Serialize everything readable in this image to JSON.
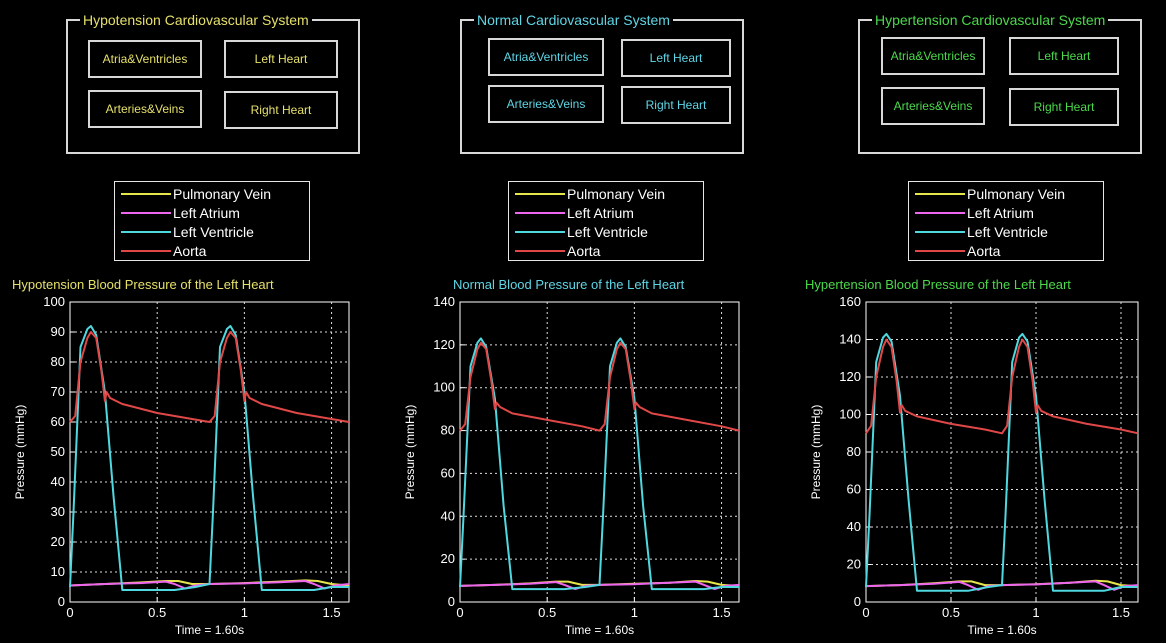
{
  "panels": [
    {
      "id": "hypotension",
      "accent": "#e6e06a",
      "group_title": "Hypotension Cardiovascular System",
      "buttons": {
        "atria_ventricles": "Atria&Ventricles",
        "left_heart": "Left Heart",
        "arteries_veins": "Arteries&Veins",
        "right_heart": "Right Heart"
      },
      "legend": [
        "Pulmonary Vein",
        "Left Atrium",
        "Left Ventricle",
        "Aorta"
      ]
    },
    {
      "id": "normal",
      "accent": "#5fd6e6",
      "group_title": "Normal Cardiovascular System",
      "buttons": {
        "atria_ventricles": "Atria&Ventricles",
        "left_heart": "Left Heart",
        "arteries_veins": "Arteries&Veins",
        "right_heart": "Right Heart"
      },
      "legend": [
        "Pulmonary Vein",
        "Left Atrium",
        "Left Ventricle",
        "Aorta"
      ]
    },
    {
      "id": "hypertension",
      "accent": "#4cd94c",
      "group_title": "Hypertension Cardiovascular System",
      "buttons": {
        "atria_ventricles": "Atria&Ventricles",
        "left_heart": "Left Heart",
        "arteries_veins": "Arteries&Veins",
        "right_heart": "Right Heart"
      },
      "legend": [
        "Pulmonary Vein",
        "Left Atrium",
        "Left Ventricle",
        "Aorta"
      ]
    }
  ],
  "series_colors": {
    "pulmonary_vein": "#e6e64c",
    "left_atrium": "#ee66ee",
    "left_ventricle": "#4fd8e0",
    "aorta": "#e04848"
  },
  "chart_data": [
    {
      "type": "line",
      "title": "Hypotension Blood Pressure of the Left Heart",
      "xlabel": "Time = 1.60s",
      "ylabel": "Pressure (mmHg)",
      "xlim": [
        0,
        1.6
      ],
      "ylim": [
        0,
        100
      ],
      "xticks": [
        0,
        0.5,
        1,
        1.5
      ],
      "yticks": [
        0,
        10,
        20,
        30,
        40,
        50,
        60,
        70,
        80,
        90,
        100
      ],
      "grid": true,
      "series": [
        {
          "name": "Pulmonary Vein",
          "color": "#e6e64c",
          "x": [
            0,
            0.2,
            0.4,
            0.55,
            0.62,
            0.7,
            0.8,
            1.0,
            1.2,
            1.35,
            1.42,
            1.5,
            1.6
          ],
          "y": [
            5.5,
            6,
            6.5,
            7,
            7,
            6,
            6,
            6.3,
            6.8,
            7.2,
            7,
            6,
            5.5
          ]
        },
        {
          "name": "Left Atrium",
          "color": "#ee66ee",
          "x": [
            0,
            0.2,
            0.4,
            0.55,
            0.6,
            0.66,
            0.72,
            0.8,
            1.0,
            1.2,
            1.35,
            1.4,
            1.46,
            1.52,
            1.6
          ],
          "y": [
            5.5,
            6,
            6.3,
            6.8,
            6,
            4.5,
            5.5,
            6,
            6.2,
            6.6,
            7,
            6,
            4.5,
            5.5,
            6
          ]
        },
        {
          "name": "Left Ventricle",
          "color": "#4fd8e0",
          "x": [
            0,
            0.02,
            0.06,
            0.1,
            0.12,
            0.15,
            0.2,
            0.25,
            0.3,
            0.4,
            0.6,
            0.72,
            0.8,
            0.82,
            0.86,
            0.9,
            0.92,
            0.95,
            1.0,
            1.05,
            1.1,
            1.2,
            1.4,
            1.5,
            1.6
          ],
          "y": [
            5,
            30,
            85,
            91,
            92,
            89,
            70,
            35,
            4,
            4,
            4,
            5,
            6,
            30,
            85,
            91,
            92,
            89,
            70,
            35,
            4,
            4,
            4,
            5,
            5
          ]
        },
        {
          "name": "Aorta",
          "color": "#e04848",
          "x": [
            0,
            0.03,
            0.06,
            0.1,
            0.12,
            0.15,
            0.18,
            0.2,
            0.21,
            0.23,
            0.3,
            0.5,
            0.7,
            0.8,
            0.83,
            0.86,
            0.9,
            0.92,
            0.95,
            0.98,
            1.0,
            1.01,
            1.03,
            1.1,
            1.3,
            1.5,
            1.6
          ],
          "y": [
            60,
            62,
            80,
            88,
            90,
            88,
            77,
            67,
            70,
            68,
            66,
            63,
            61,
            60,
            62,
            80,
            88,
            90,
            88,
            77,
            67,
            70,
            68,
            66,
            63,
            61,
            60
          ]
        }
      ]
    },
    {
      "type": "line",
      "title": "Normal Blood Pressure of the Left Heart",
      "xlabel": "Time = 1.60s",
      "ylabel": "Pressure (mmHg)",
      "xlim": [
        0,
        1.6
      ],
      "ylim": [
        0,
        140
      ],
      "xticks": [
        0,
        0.5,
        1,
        1.5
      ],
      "yticks": [
        0,
        20,
        40,
        60,
        80,
        100,
        120,
        140
      ],
      "grid": true,
      "series": [
        {
          "name": "Pulmonary Vein",
          "color": "#e6e64c",
          "x": [
            0,
            0.2,
            0.4,
            0.55,
            0.62,
            0.7,
            0.8,
            1.0,
            1.2,
            1.35,
            1.42,
            1.5,
            1.6
          ],
          "y": [
            7.5,
            8,
            8.7,
            9.5,
            9.5,
            8,
            8,
            8.5,
            9,
            9.8,
            9.5,
            8,
            7.5
          ]
        },
        {
          "name": "Left Atrium",
          "color": "#ee66ee",
          "x": [
            0,
            0.2,
            0.4,
            0.55,
            0.6,
            0.66,
            0.72,
            0.8,
            1.0,
            1.2,
            1.35,
            1.4,
            1.46,
            1.52,
            1.6
          ],
          "y": [
            7.5,
            8,
            8.5,
            9.3,
            8,
            6,
            7.5,
            8,
            8.3,
            9,
            9.5,
            8,
            6,
            7.5,
            8
          ]
        },
        {
          "name": "Left Ventricle",
          "color": "#4fd8e0",
          "x": [
            0,
            0.02,
            0.06,
            0.1,
            0.12,
            0.15,
            0.2,
            0.25,
            0.3,
            0.4,
            0.6,
            0.72,
            0.8,
            0.82,
            0.86,
            0.9,
            0.92,
            0.95,
            1.0,
            1.05,
            1.1,
            1.2,
            1.4,
            1.5,
            1.6
          ],
          "y": [
            7,
            40,
            110,
            121,
            123,
            119,
            95,
            45,
            6,
            6,
            6,
            7,
            8,
            40,
            110,
            121,
            123,
            119,
            95,
            45,
            6,
            6,
            6,
            7,
            7
          ]
        },
        {
          "name": "Aorta",
          "color": "#e04848",
          "x": [
            0,
            0.03,
            0.06,
            0.1,
            0.12,
            0.15,
            0.18,
            0.2,
            0.21,
            0.23,
            0.3,
            0.5,
            0.7,
            0.8,
            0.83,
            0.86,
            0.9,
            0.92,
            0.95,
            0.98,
            1.0,
            1.01,
            1.03,
            1.1,
            1.3,
            1.5,
            1.6
          ],
          "y": [
            80,
            83,
            105,
            118,
            121,
            118,
            103,
            90,
            93,
            91,
            88,
            85,
            82,
            80,
            83,
            105,
            118,
            121,
            118,
            103,
            90,
            93,
            91,
            88,
            85,
            82,
            80
          ]
        }
      ]
    },
    {
      "type": "line",
      "title": "Hypertension Blood Pressure of the Left Heart",
      "xlabel": "Time = 1.60s",
      "ylabel": "Pressure (mmHg)",
      "xlim": [
        0,
        1.6
      ],
      "ylim": [
        0,
        160
      ],
      "xticks": [
        0,
        0.5,
        1,
        1.5
      ],
      "yticks": [
        0,
        20,
        40,
        60,
        80,
        100,
        120,
        140,
        160
      ],
      "grid": true,
      "series": [
        {
          "name": "Pulmonary Vein",
          "color": "#e6e64c",
          "x": [
            0,
            0.2,
            0.4,
            0.55,
            0.62,
            0.7,
            0.8,
            1.0,
            1.2,
            1.35,
            1.42,
            1.5,
            1.6
          ],
          "y": [
            8.5,
            9,
            10,
            11,
            11,
            9,
            9,
            9.5,
            10.3,
            11.3,
            11,
            9,
            8.5
          ]
        },
        {
          "name": "Left Atrium",
          "color": "#ee66ee",
          "x": [
            0,
            0.2,
            0.4,
            0.55,
            0.6,
            0.66,
            0.72,
            0.8,
            1.0,
            1.2,
            1.35,
            1.4,
            1.46,
            1.52,
            1.6
          ],
          "y": [
            8.5,
            9,
            9.7,
            10.7,
            9,
            6.5,
            8.5,
            9,
            9.4,
            10.3,
            11,
            9,
            6.5,
            8.5,
            9
          ]
        },
        {
          "name": "Left Ventricle",
          "color": "#4fd8e0",
          "x": [
            0,
            0.02,
            0.06,
            0.1,
            0.12,
            0.15,
            0.2,
            0.25,
            0.3,
            0.4,
            0.6,
            0.72,
            0.8,
            0.82,
            0.86,
            0.9,
            0.92,
            0.95,
            1.0,
            1.05,
            1.1,
            1.2,
            1.4,
            1.5,
            1.6
          ],
          "y": [
            8,
            45,
            128,
            141,
            143,
            139,
            110,
            55,
            6,
            6,
            6,
            8,
            9,
            45,
            128,
            141,
            143,
            139,
            110,
            55,
            6,
            6,
            6,
            8,
            8
          ]
        },
        {
          "name": "Aorta",
          "color": "#e04848",
          "x": [
            0,
            0.03,
            0.06,
            0.1,
            0.12,
            0.15,
            0.18,
            0.2,
            0.21,
            0.23,
            0.3,
            0.5,
            0.7,
            0.8,
            0.83,
            0.86,
            0.9,
            0.92,
            0.95,
            0.98,
            1.0,
            1.01,
            1.03,
            1.1,
            1.3,
            1.5,
            1.6
          ],
          "y": [
            90,
            94,
            120,
            136,
            140,
            136,
            118,
            101,
            105,
            102,
            99,
            95,
            92,
            90,
            94,
            120,
            136,
            140,
            136,
            118,
            101,
            105,
            102,
            99,
            95,
            92,
            90
          ]
        }
      ]
    }
  ]
}
